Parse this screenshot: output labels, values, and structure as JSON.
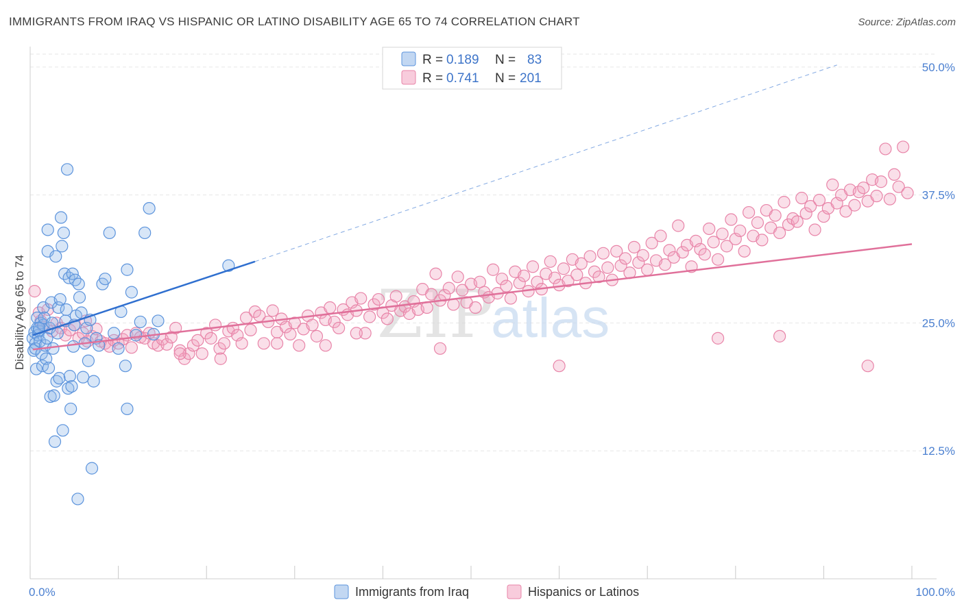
{
  "title": "IMMIGRANTS FROM IRAQ VS HISPANIC OR LATINO DISABILITY AGE 65 TO 74 CORRELATION CHART",
  "source": "Source: ZipAtlas.com",
  "watermark": {
    "zip": "ZIP",
    "atlas": "atlas"
  },
  "legend_top": [
    {
      "r_label": "R = ",
      "r": "0.189",
      "n_label": "N = ",
      "n": "83",
      "color": "#8fb6e8"
    },
    {
      "r_label": "R = ",
      "r": "0.741",
      "n_label": "N = ",
      "n": "201",
      "color": "#f2a3bf"
    }
  ],
  "legend_bottom": [
    {
      "label": "Immigrants from Iraq",
      "color": "#8fb6e8"
    },
    {
      "label": "Hispanics or Latinos",
      "color": "#f2a3bf"
    }
  ],
  "chart_data": {
    "type": "scatter",
    "ylabel": "Disability Age 65 to 74",
    "xlabel": "",
    "xlim": [
      0,
      100
    ],
    "ylim": [
      0,
      52
    ],
    "x_tick_labels": {
      "min": "0.0%",
      "max": "100.0%"
    },
    "y_ticks": [
      {
        "value": 12.5,
        "label": "12.5%"
      },
      {
        "value": 25.0,
        "label": "25.0%"
      },
      {
        "value": 37.5,
        "label": "37.5%"
      },
      {
        "value": 50.0,
        "label": "50.0%"
      }
    ],
    "grid": true,
    "legend_position": "top-center",
    "series": [
      {
        "name": "Immigrants from Iraq",
        "color": "#8fb6e8",
        "stroke": "#5b93dc",
        "trend": {
          "x0": 0.3,
          "y0": 23.8,
          "x1": 25.5,
          "y1": 31.0,
          "dash_to_x": 91.5,
          "dash_to_y": 50.2,
          "color": "#2f6fcf"
        },
        "points": [
          [
            0.3,
            23.5
          ],
          [
            0.4,
            22.3
          ],
          [
            0.5,
            24.1
          ],
          [
            0.6,
            23.0
          ],
          [
            0.6,
            22.5
          ],
          [
            0.7,
            20.5
          ],
          [
            0.8,
            25.5
          ],
          [
            0.8,
            24.5
          ],
          [
            0.9,
            23.8
          ],
          [
            1.0,
            24.2
          ],
          [
            1.1,
            23.2
          ],
          [
            1.2,
            25.0
          ],
          [
            1.3,
            22.0
          ],
          [
            1.4,
            20.8
          ],
          [
            1.5,
            26.5
          ],
          [
            1.5,
            24.8
          ],
          [
            1.6,
            25.5
          ],
          [
            1.7,
            22.8
          ],
          [
            1.8,
            21.5
          ],
          [
            1.9,
            23.5
          ],
          [
            2.0,
            34.1
          ],
          [
            2.0,
            32.0
          ],
          [
            2.1,
            20.6
          ],
          [
            2.2,
            24.5
          ],
          [
            2.3,
            17.8
          ],
          [
            2.4,
            27.0
          ],
          [
            2.5,
            25.0
          ],
          [
            2.6,
            22.5
          ],
          [
            2.7,
            17.9
          ],
          [
            2.8,
            13.4
          ],
          [
            2.9,
            31.5
          ],
          [
            3.0,
            19.3
          ],
          [
            3.1,
            24.0
          ],
          [
            3.2,
            26.5
          ],
          [
            3.3,
            19.6
          ],
          [
            3.4,
            27.3
          ],
          [
            3.5,
            35.3
          ],
          [
            3.6,
            32.5
          ],
          [
            3.7,
            14.5
          ],
          [
            3.8,
            33.8
          ],
          [
            3.9,
            29.8
          ],
          [
            4.0,
            25.2
          ],
          [
            4.1,
            26.3
          ],
          [
            4.2,
            40.0
          ],
          [
            4.3,
            18.6
          ],
          [
            4.4,
            29.4
          ],
          [
            4.5,
            19.8
          ],
          [
            4.6,
            16.6
          ],
          [
            4.7,
            18.8
          ],
          [
            4.8,
            29.8
          ],
          [
            4.9,
            22.7
          ],
          [
            5.0,
            24.8
          ],
          [
            5.1,
            29.2
          ],
          [
            5.2,
            25.7
          ],
          [
            5.4,
            7.8
          ],
          [
            5.5,
            28.8
          ],
          [
            5.6,
            27.5
          ],
          [
            5.8,
            26.0
          ],
          [
            6.0,
            19.7
          ],
          [
            6.2,
            23.0
          ],
          [
            6.4,
            24.5
          ],
          [
            6.6,
            21.3
          ],
          [
            6.8,
            25.3
          ],
          [
            7.0,
            10.8
          ],
          [
            7.2,
            19.3
          ],
          [
            7.5,
            23.5
          ],
          [
            7.8,
            22.8
          ],
          [
            8.2,
            28.8
          ],
          [
            8.5,
            29.3
          ],
          [
            9.0,
            33.8
          ],
          [
            9.5,
            24.0
          ],
          [
            10.0,
            22.5
          ],
          [
            10.3,
            26.1
          ],
          [
            10.8,
            20.8
          ],
          [
            11.0,
            16.6
          ],
          [
            11.5,
            28.0
          ],
          [
            11.0,
            30.2
          ],
          [
            12.0,
            23.8
          ],
          [
            12.5,
            25.1
          ],
          [
            13.0,
            33.8
          ],
          [
            13.5,
            36.2
          ],
          [
            14.0,
            23.9
          ],
          [
            14.5,
            25.2
          ],
          [
            22.5,
            30.6
          ],
          [
            1.0,
            24.5
          ]
        ]
      },
      {
        "name": "Hispanics or Latinos",
        "color": "#f2a3bf",
        "stroke": "#e884a8",
        "trend": {
          "x0": 0.3,
          "y0": 22.4,
          "x1": 100.0,
          "y1": 32.7,
          "color": "#e0709a"
        },
        "points": [
          [
            0.5,
            28.1
          ],
          [
            1.0,
            26.0
          ],
          [
            1.2,
            25.2
          ],
          [
            1.5,
            24.6
          ],
          [
            2.0,
            26.3
          ],
          [
            2.5,
            24.2
          ],
          [
            3.0,
            25.0
          ],
          [
            3.5,
            24.5
          ],
          [
            4.0,
            23.8
          ],
          [
            4.5,
            24.3
          ],
          [
            5.0,
            24.8
          ],
          [
            5.5,
            23.5
          ],
          [
            6.0,
            24.0
          ],
          [
            6.3,
            25.2
          ],
          [
            6.5,
            23.2
          ],
          [
            7.0,
            23.7
          ],
          [
            7.5,
            24.4
          ],
          [
            8.0,
            23.2
          ],
          [
            8.5,
            23.0
          ],
          [
            9.0,
            22.7
          ],
          [
            9.5,
            23.3
          ],
          [
            10.0,
            23.0
          ],
          [
            10.5,
            23.4
          ],
          [
            11.0,
            23.8
          ],
          [
            11.5,
            22.6
          ],
          [
            12.0,
            24.0
          ],
          [
            12.5,
            23.6
          ],
          [
            13.0,
            23.5
          ],
          [
            13.5,
            24.0
          ],
          [
            14.0,
            23.0
          ],
          [
            14.5,
            22.8
          ],
          [
            15.0,
            23.4
          ],
          [
            15.5,
            22.9
          ],
          [
            16.0,
            23.6
          ],
          [
            16.5,
            24.5
          ],
          [
            17.0,
            22.3
          ],
          [
            17.5,
            21.5
          ],
          [
            18.0,
            22.0
          ],
          [
            18.5,
            22.8
          ],
          [
            19.0,
            23.3
          ],
          [
            19.5,
            22.0
          ],
          [
            20.0,
            24.0
          ],
          [
            20.5,
            23.5
          ],
          [
            21.0,
            24.8
          ],
          [
            21.5,
            22.5
          ],
          [
            22.0,
            23.0
          ],
          [
            22.5,
            24.2
          ],
          [
            23.0,
            24.5
          ],
          [
            23.5,
            23.8
          ],
          [
            24.0,
            23.0
          ],
          [
            24.5,
            25.5
          ],
          [
            25.0,
            24.3
          ],
          [
            25.5,
            26.1
          ],
          [
            26.0,
            25.7
          ],
          [
            26.5,
            23.0
          ],
          [
            27.0,
            25.1
          ],
          [
            27.5,
            26.2
          ],
          [
            28.0,
            24.1
          ],
          [
            28.5,
            25.4
          ],
          [
            29.0,
            24.6
          ],
          [
            29.5,
            23.9
          ],
          [
            30.0,
            25.0
          ],
          [
            30.5,
            22.8
          ],
          [
            31.0,
            24.4
          ],
          [
            31.5,
            25.7
          ],
          [
            32.0,
            24.8
          ],
          [
            32.5,
            23.7
          ],
          [
            33.0,
            26.0
          ],
          [
            33.5,
            25.3
          ],
          [
            34.0,
            26.5
          ],
          [
            34.5,
            25.1
          ],
          [
            35.0,
            24.5
          ],
          [
            35.5,
            26.3
          ],
          [
            36.0,
            25.8
          ],
          [
            36.5,
            27.0
          ],
          [
            37.0,
            26.2
          ],
          [
            37.5,
            27.4
          ],
          [
            38.0,
            24.0
          ],
          [
            38.5,
            25.6
          ],
          [
            39.0,
            26.8
          ],
          [
            39.5,
            27.3
          ],
          [
            40.0,
            26.0
          ],
          [
            40.5,
            25.4
          ],
          [
            41.0,
            26.7
          ],
          [
            41.5,
            27.6
          ],
          [
            42.0,
            26.2
          ],
          [
            42.5,
            26.6
          ],
          [
            43.0,
            25.9
          ],
          [
            43.5,
            27.1
          ],
          [
            44.0,
            26.3
          ],
          [
            44.5,
            28.3
          ],
          [
            45.0,
            26.5
          ],
          [
            45.5,
            27.8
          ],
          [
            46.0,
            29.8
          ],
          [
            46.5,
            27.2
          ],
          [
            47.0,
            27.7
          ],
          [
            47.5,
            28.4
          ],
          [
            48.0,
            26.8
          ],
          [
            48.5,
            29.5
          ],
          [
            49.0,
            28.2
          ],
          [
            49.5,
            27.0
          ],
          [
            50.0,
            28.8
          ],
          [
            50.5,
            26.5
          ],
          [
            51.0,
            29.0
          ],
          [
            51.5,
            28.0
          ],
          [
            52.0,
            27.5
          ],
          [
            52.5,
            30.2
          ],
          [
            53.0,
            27.9
          ],
          [
            53.5,
            29.3
          ],
          [
            54.0,
            28.6
          ],
          [
            54.5,
            27.4
          ],
          [
            55.0,
            30.0
          ],
          [
            55.5,
            28.9
          ],
          [
            56.0,
            29.6
          ],
          [
            56.5,
            28.1
          ],
          [
            57.0,
            30.5
          ],
          [
            57.5,
            29.0
          ],
          [
            58.0,
            28.3
          ],
          [
            58.5,
            29.8
          ],
          [
            59.0,
            31.0
          ],
          [
            59.5,
            29.4
          ],
          [
            60.0,
            28.7
          ],
          [
            60.5,
            30.3
          ],
          [
            61.0,
            29.1
          ],
          [
            61.5,
            31.2
          ],
          [
            62.0,
            29.7
          ],
          [
            62.5,
            30.8
          ],
          [
            63.0,
            28.9
          ],
          [
            63.5,
            31.5
          ],
          [
            64.0,
            30.0
          ],
          [
            64.5,
            29.5
          ],
          [
            65.0,
            31.8
          ],
          [
            65.5,
            30.4
          ],
          [
            66.0,
            29.2
          ],
          [
            66.5,
            32.0
          ],
          [
            67.0,
            30.6
          ],
          [
            67.5,
            31.3
          ],
          [
            68.0,
            29.9
          ],
          [
            68.5,
            32.4
          ],
          [
            69.0,
            30.9
          ],
          [
            69.5,
            31.6
          ],
          [
            70.0,
            30.2
          ],
          [
            70.5,
            32.8
          ],
          [
            71.0,
            31.1
          ],
          [
            71.5,
            33.5
          ],
          [
            72.0,
            30.7
          ],
          [
            72.5,
            32.1
          ],
          [
            73.0,
            31.4
          ],
          [
            73.5,
            34.5
          ],
          [
            74.0,
            31.9
          ],
          [
            74.5,
            32.6
          ],
          [
            75.0,
            30.5
          ],
          [
            75.5,
            33.0
          ],
          [
            76.0,
            32.2
          ],
          [
            76.5,
            31.7
          ],
          [
            77.0,
            34.2
          ],
          [
            77.5,
            32.9
          ],
          [
            78.0,
            31.2
          ],
          [
            78.5,
            33.7
          ],
          [
            79.0,
            32.5
          ],
          [
            79.5,
            35.1
          ],
          [
            80.0,
            33.2
          ],
          [
            80.5,
            34.0
          ],
          [
            81.0,
            32.0
          ],
          [
            81.5,
            35.8
          ],
          [
            82.0,
            33.5
          ],
          [
            82.5,
            34.8
          ],
          [
            83.0,
            33.1
          ],
          [
            83.5,
            36.0
          ],
          [
            84.0,
            34.3
          ],
          [
            84.5,
            35.5
          ],
          [
            85.0,
            33.8
          ],
          [
            85.5,
            36.8
          ],
          [
            86.0,
            34.6
          ],
          [
            86.5,
            35.2
          ],
          [
            87.0,
            34.9
          ],
          [
            87.5,
            37.2
          ],
          [
            88.0,
            35.7
          ],
          [
            88.5,
            36.4
          ],
          [
            89.0,
            34.1
          ],
          [
            89.5,
            37.0
          ],
          [
            90.0,
            35.4
          ],
          [
            90.5,
            36.2
          ],
          [
            91.0,
            38.5
          ],
          [
            91.5,
            36.7
          ],
          [
            92.0,
            37.5
          ],
          [
            92.5,
            35.9
          ],
          [
            93.0,
            38.0
          ],
          [
            93.5,
            36.5
          ],
          [
            94.0,
            37.8
          ],
          [
            94.5,
            38.2
          ],
          [
            95.0,
            36.9
          ],
          [
            95.5,
            39.0
          ],
          [
            96.0,
            37.4
          ],
          [
            96.5,
            38.8
          ],
          [
            97.0,
            42.0
          ],
          [
            97.5,
            37.1
          ],
          [
            98.0,
            39.5
          ],
          [
            98.5,
            38.3
          ],
          [
            99.0,
            42.2
          ],
          [
            99.5,
            37.7
          ],
          [
            21.6,
            21.5
          ],
          [
            60.0,
            20.8
          ],
          [
            95.0,
            20.8
          ],
          [
            78.0,
            23.5
          ],
          [
            85.0,
            23.7
          ],
          [
            46.5,
            22.5
          ],
          [
            37.0,
            24.0
          ],
          [
            33.5,
            22.8
          ],
          [
            28.0,
            23.0
          ],
          [
            17.0,
            22.0
          ]
        ]
      }
    ]
  }
}
